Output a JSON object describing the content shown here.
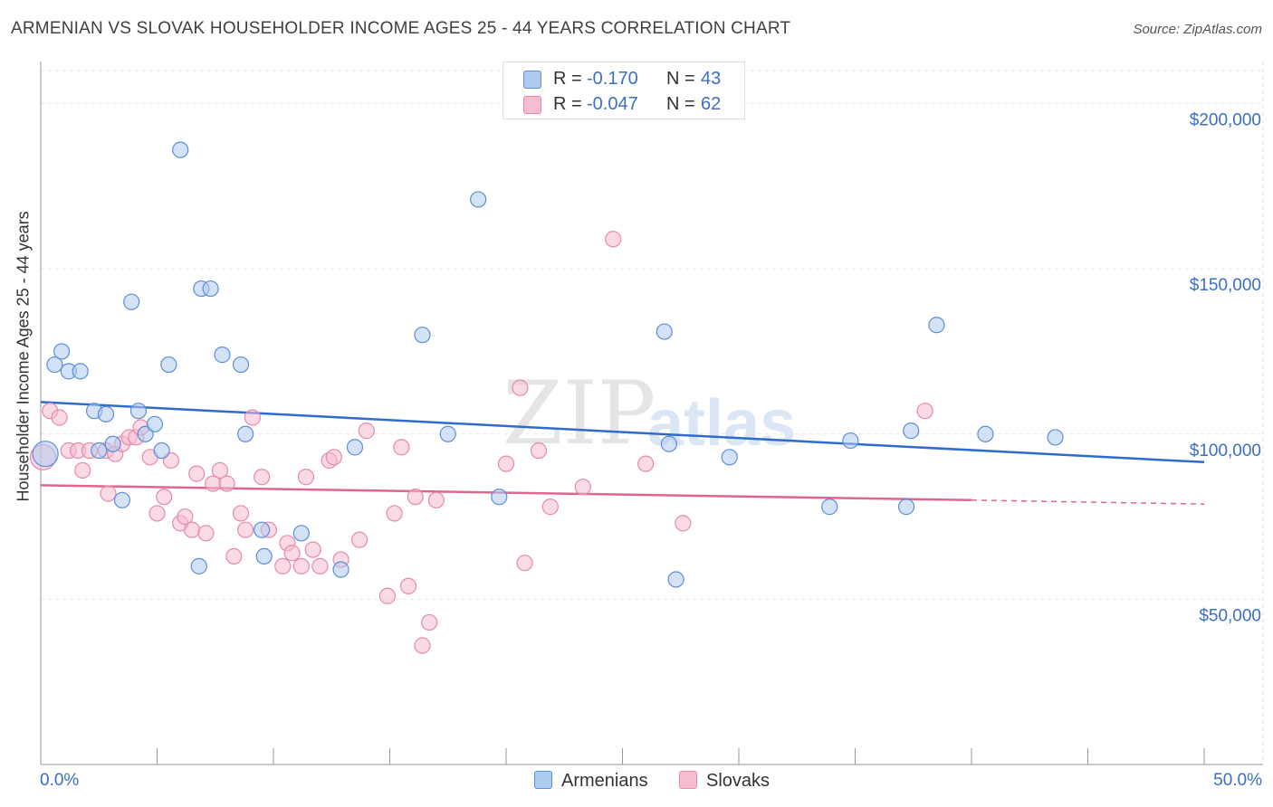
{
  "title": "ARMENIAN VS SLOVAK HOUSEHOLDER INCOME AGES 25 - 44 YEARS CORRELATION CHART",
  "source": "Source: ZipAtlas.com",
  "watermark": "ZIPatlas",
  "legend": {
    "rows": [
      {
        "r_label": "R =",
        "r_value": "-0.170",
        "n_label": "N =",
        "n_value": "43"
      },
      {
        "r_label": "R =",
        "r_value": "-0.047",
        "n_label": "N =",
        "n_value": "62"
      }
    ]
  },
  "bottom_legend": [
    "Armenians",
    "Slovaks"
  ],
  "colors": {
    "armenian_fill": "#aecbf0",
    "armenian_stroke": "#5b8fd6",
    "armenian_line": "#2e6ccc",
    "slovak_fill": "#f6bcd0",
    "slovak_stroke": "#e58aaa",
    "slovak_line": "#e06690",
    "axis_label": "#3a6fc4"
  },
  "chart_data": {
    "type": "scatter",
    "title": "ARMENIAN VS SLOVAK HOUSEHOLDER INCOME AGES 25 - 44 YEARS CORRELATION CHART",
    "xlabel": "",
    "ylabel": "Householder Income Ages 25 - 44 years",
    "x_tick_labels": [
      "0.0%",
      "50.0%"
    ],
    "y_tick_labels": [
      "$50,000",
      "$100,000",
      "$150,000",
      "$200,000"
    ],
    "y_ticks": [
      50000,
      100000,
      150000,
      200000
    ],
    "xlim": [
      0,
      50
    ],
    "ylim": [
      0,
      210000
    ],
    "grid": true,
    "legend_position": "top-center",
    "series": [
      {
        "name": "Armenians",
        "trend": {
          "x": [
            0,
            50
          ],
          "y": [
            109700,
            91500
          ]
        },
        "points": [
          [
            0.2,
            94000
          ],
          [
            0.6,
            121000
          ],
          [
            0.9,
            125000
          ],
          [
            1.2,
            119000
          ],
          [
            1.7,
            119000
          ],
          [
            2.3,
            107000
          ],
          [
            2.8,
            106000
          ],
          [
            3.1,
            97000
          ],
          [
            3.5,
            80000
          ],
          [
            3.9,
            140000
          ],
          [
            4.2,
            107000
          ],
          [
            4.5,
            100000
          ],
          [
            4.9,
            103000
          ],
          [
            5.2,
            95000
          ],
          [
            5.5,
            121000
          ],
          [
            6.0,
            186000
          ],
          [
            6.8,
            60000
          ],
          [
            6.9,
            144000
          ],
          [
            7.3,
            144000
          ],
          [
            7.8,
            124000
          ],
          [
            8.6,
            121000
          ],
          [
            8.8,
            100000
          ],
          [
            9.5,
            71000
          ],
          [
            9.6,
            63000
          ],
          [
            11.2,
            70000
          ],
          [
            12.9,
            59000
          ],
          [
            13.5,
            96000
          ],
          [
            16.4,
            130000
          ],
          [
            17.5,
            100000
          ],
          [
            18.8,
            171000
          ],
          [
            19.7,
            81000
          ],
          [
            27.3,
            56000
          ],
          [
            26.8,
            131000
          ],
          [
            27.0,
            97000
          ],
          [
            29.6,
            93000
          ],
          [
            33.9,
            78000
          ],
          [
            34.8,
            98000
          ],
          [
            37.2,
            78000
          ],
          [
            37.4,
            101000
          ],
          [
            38.5,
            133000
          ],
          [
            40.6,
            100000
          ],
          [
            43.6,
            99000
          ],
          [
            2.5,
            95000
          ]
        ]
      },
      {
        "name": "Slovaks",
        "trend": {
          "x": [
            0,
            40
          ],
          "y": [
            84500,
            80000
          ],
          "dashed_to": {
            "x": 50,
            "y": 78800
          }
        },
        "points": [
          [
            0.1,
            93000
          ],
          [
            0.4,
            107000
          ],
          [
            0.8,
            105000
          ],
          [
            1.2,
            95000
          ],
          [
            1.6,
            95000
          ],
          [
            1.8,
            89000
          ],
          [
            2.1,
            95000
          ],
          [
            2.8,
            95000
          ],
          [
            2.9,
            82000
          ],
          [
            3.2,
            94000
          ],
          [
            3.5,
            97000
          ],
          [
            3.8,
            99000
          ],
          [
            4.1,
            99000
          ],
          [
            4.3,
            102000
          ],
          [
            4.7,
            93000
          ],
          [
            5.0,
            76000
          ],
          [
            5.3,
            81000
          ],
          [
            5.6,
            92000
          ],
          [
            6.0,
            73000
          ],
          [
            6.2,
            75000
          ],
          [
            6.5,
            71000
          ],
          [
            6.7,
            88000
          ],
          [
            7.1,
            70000
          ],
          [
            7.4,
            85000
          ],
          [
            7.7,
            89000
          ],
          [
            8.0,
            85000
          ],
          [
            8.3,
            63000
          ],
          [
            8.6,
            76000
          ],
          [
            8.8,
            71000
          ],
          [
            9.1,
            105000
          ],
          [
            9.5,
            87000
          ],
          [
            9.8,
            71000
          ],
          [
            10.4,
            60000
          ],
          [
            10.6,
            67000
          ],
          [
            10.8,
            64000
          ],
          [
            11.2,
            60000
          ],
          [
            11.4,
            87000
          ],
          [
            11.7,
            65000
          ],
          [
            12.0,
            60000
          ],
          [
            12.4,
            92000
          ],
          [
            12.6,
            93000
          ],
          [
            12.9,
            62000
          ],
          [
            13.7,
            68000
          ],
          [
            14.0,
            101000
          ],
          [
            14.9,
            51000
          ],
          [
            15.2,
            76000
          ],
          [
            15.5,
            96000
          ],
          [
            15.8,
            54000
          ],
          [
            16.1,
            81000
          ],
          [
            16.4,
            36000
          ],
          [
            16.7,
            43000
          ],
          [
            17.0,
            80000
          ],
          [
            20.0,
            91000
          ],
          [
            20.6,
            114000
          ],
          [
            20.8,
            61000
          ],
          [
            21.4,
            95000
          ],
          [
            21.9,
            78000
          ],
          [
            23.3,
            84000
          ],
          [
            24.6,
            159000
          ],
          [
            26.0,
            91000
          ],
          [
            27.6,
            73000
          ],
          [
            38.0,
            107000
          ]
        ]
      }
    ]
  }
}
